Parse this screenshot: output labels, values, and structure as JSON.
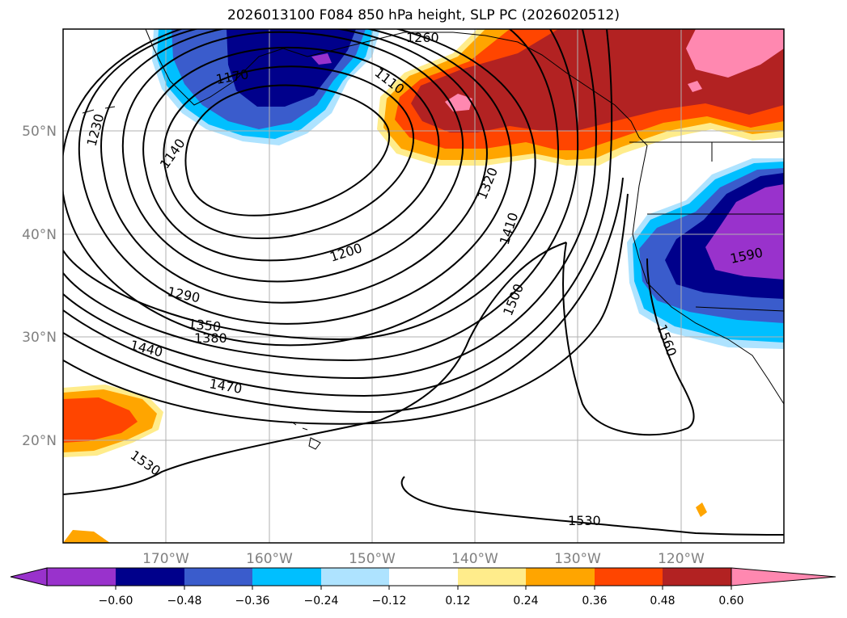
{
  "title": "2026013100 F084 850 hPa height, SLP PC (2026020512)",
  "map": {
    "lat_labels": [
      "50°N",
      "40°N",
      "30°N",
      "20°N"
    ],
    "lon_labels": [
      "170°W",
      "160°W",
      "150°W",
      "140°W",
      "130°W",
      "120°W"
    ],
    "contour_labels": [
      "1260",
      "1170",
      "1110",
      "1230",
      "1140",
      "1320",
      "1410",
      "1200",
      "1500",
      "1290",
      "1350",
      "1380",
      "1440",
      "1470",
      "1530",
      "1530",
      "1560",
      "1590"
    ]
  },
  "colorbar": {
    "ticks": [
      "−0.60",
      "−0.48",
      "−0.36",
      "−0.24",
      "−0.12",
      "0.12",
      "0.24",
      "0.36",
      "0.48",
      "0.60"
    ],
    "colors": [
      "#9932cc",
      "#00008b",
      "#3a5ccc",
      "#00bfff",
      "#aee3ff",
      "#ffffff",
      "#ffec8b",
      "#ffa500",
      "#ff4500",
      "#b22222",
      "#ff88b0"
    ]
  }
}
